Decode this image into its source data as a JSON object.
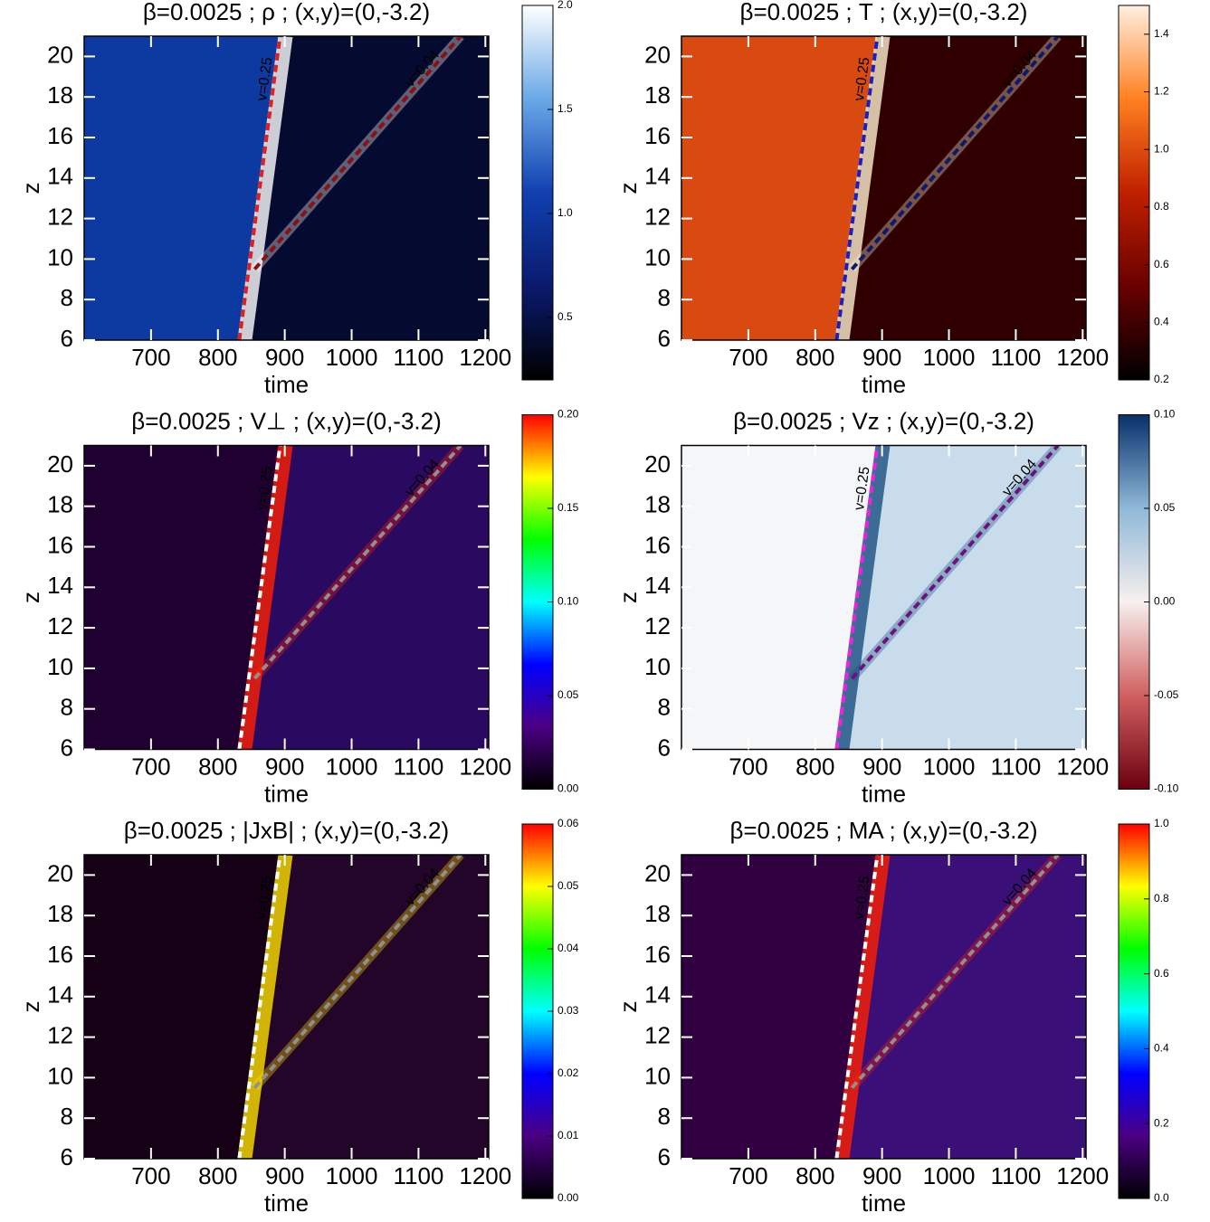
{
  "chart_data": [
    {
      "type": "heatmap",
      "title": "β=0.0025 ; ρ ; (x,y)=(0,-3.2)",
      "xlabel": "time",
      "ylabel": "z",
      "xlim": [
        600,
        1205
      ],
      "xticks": [
        700,
        800,
        900,
        1000,
        1100,
        1200
      ],
      "ylim": [
        6,
        21
      ],
      "yticks": [
        6,
        8,
        10,
        12,
        14,
        16,
        18,
        20
      ],
      "clim": [
        0.2,
        2.0
      ],
      "cticks": [
        {
          "value": 0.5,
          "label": "0.5"
        },
        {
          "value": 1.0,
          "label": "1.0"
        },
        {
          "value": 1.5,
          "label": "1.5"
        },
        {
          "value": 2.0,
          "label": "2.0"
        }
      ],
      "colormap": [
        "#000000",
        "#0a1a6e",
        "#1040b0",
        "#6aa8e8",
        "#ffffff"
      ],
      "field_colors": [
        "#0d3aa0",
        "#050a30",
        "#ffffff"
      ],
      "lines": [
        {
          "label": "v=0.25",
          "color": "#e02020",
          "x": [
            832,
            893
          ],
          "y": [
            6,
            21
          ]
        },
        {
          "label": "v=0.04",
          "color": "#8b1010",
          "x": [
            855,
            1163
          ],
          "y": [
            9.5,
            21
          ]
        }
      ]
    },
    {
      "type": "heatmap",
      "title": "β=0.0025 ; T ; (x,y)=(0,-3.2)",
      "xlabel": "time",
      "ylabel": "z",
      "xlim": [
        600,
        1205
      ],
      "xticks": [
        700,
        800,
        900,
        1000,
        1100,
        1200
      ],
      "ylim": [
        6,
        21
      ],
      "yticks": [
        6,
        8,
        10,
        12,
        14,
        16,
        18,
        20
      ],
      "clim": [
        0.2,
        1.5
      ],
      "cticks": [
        0.2,
        0.4,
        0.6,
        0.8,
        {
          "value": 1.0,
          "label": "1.0"
        },
        1.2,
        1.4
      ],
      "colormap": [
        "#000000",
        "#6a0000",
        "#c02000",
        "#ff8020",
        "#fff0e0"
      ],
      "field_colors": [
        "#d84a10",
        "#300000",
        "#fff0d0"
      ],
      "lines": [
        {
          "label": "v=0.25",
          "color": "#1a20c0",
          "x": [
            832,
            893
          ],
          "y": [
            6,
            21
          ]
        },
        {
          "label": "v=0.04",
          "color": "#0a1a6e",
          "x": [
            855,
            1163
          ],
          "y": [
            9.5,
            21
          ]
        }
      ]
    },
    {
      "type": "heatmap",
      "title": "β=0.0025 ; V⊥ ; (x,y)=(0,-3.2)",
      "xlabel": "time",
      "ylabel": "z",
      "xlim": [
        600,
        1205
      ],
      "xticks": [
        700,
        800,
        900,
        1000,
        1100,
        1200
      ],
      "ylim": [
        6,
        21
      ],
      "yticks": [
        6,
        8,
        10,
        12,
        14,
        16,
        18,
        20
      ],
      "clim": [
        0,
        0.2
      ],
      "cticks": [
        {
          "value": 0,
          "label": "0.00"
        },
        0.05,
        {
          "value": 0.1,
          "label": "0.10"
        },
        0.15,
        {
          "value": 0.2,
          "label": "0.20"
        }
      ],
      "colormap": [
        "#000000",
        "#4b0082",
        "#0000ff",
        "#00ffff",
        "#00ff00",
        "#ffff00",
        "#ff0000"
      ],
      "field_colors": [
        "#200030",
        "#2a0a60",
        "#ff2000"
      ],
      "lines": [
        {
          "label": "v=0.25",
          "color": "#ffffff",
          "x": [
            832,
            893
          ],
          "y": [
            6,
            21
          ]
        },
        {
          "label": "v=0.04",
          "color": "#909090",
          "x": [
            855,
            1163
          ],
          "y": [
            9.5,
            21
          ]
        }
      ]
    },
    {
      "type": "heatmap",
      "title": "β=0.0025 ; Vz ; (x,y)=(0,-3.2)",
      "xlabel": "time",
      "ylabel": "z",
      "xlim": [
        600,
        1205
      ],
      "xticks": [
        700,
        800,
        900,
        1000,
        1100,
        1200
      ],
      "ylim": [
        6,
        21
      ],
      "yticks": [
        6,
        8,
        10,
        12,
        14,
        16,
        18,
        20
      ],
      "clim": [
        -0.1,
        0.1
      ],
      "cticks": [
        {
          "value": -0.1,
          "label": "-0.10"
        },
        -0.05,
        {
          "value": 0,
          "label": "0.00"
        },
        0.05,
        {
          "value": 0.1,
          "label": "0.10"
        }
      ],
      "colormap": [
        "#6b0010",
        "#d06060",
        "#f7f0ee",
        "#8fb8d8",
        "#08306b"
      ],
      "field_colors": [
        "#f4f6f8",
        "#c8dcec",
        "#1a4f80"
      ],
      "lines": [
        {
          "label": "v=0.25",
          "color": "#f020e0",
          "x": [
            832,
            893
          ],
          "y": [
            6,
            21
          ]
        },
        {
          "label": "v=0.04",
          "color": "#701080",
          "x": [
            855,
            1163
          ],
          "y": [
            9.5,
            21
          ]
        }
      ]
    },
    {
      "type": "heatmap",
      "title": "β=0.0025 ; |JxB| ; (x,y)=(0,-3.2)",
      "xlabel": "time",
      "ylabel": "z",
      "xlim": [
        600,
        1205
      ],
      "xticks": [
        700,
        800,
        900,
        1000,
        1100,
        1200
      ],
      "ylim": [
        6,
        21
      ],
      "yticks": [
        6,
        8,
        10,
        12,
        14,
        16,
        18,
        20
      ],
      "clim": [
        0,
        0.06
      ],
      "cticks": [
        {
          "value": 0,
          "label": "0.00"
        },
        0.01,
        0.02,
        0.03,
        0.04,
        0.05,
        0.06
      ],
      "colormap": [
        "#000000",
        "#4b0082",
        "#0000ff",
        "#00ffff",
        "#00ff00",
        "#ffff00",
        "#ff0000"
      ],
      "field_colors": [
        "#150015",
        "#220528",
        "#ffe000"
      ],
      "lines": [
        {
          "label": "v=0.25",
          "color": "#ffffff",
          "x": [
            832,
            893
          ],
          "y": [
            6,
            21
          ]
        },
        {
          "label": "v=0.04",
          "color": "#909090",
          "x": [
            855,
            1163
          ],
          "y": [
            9.5,
            21
          ]
        }
      ]
    },
    {
      "type": "heatmap",
      "title": "β=0.0025 ; MA ; (x,y)=(0,-3.2)",
      "xlabel": "time",
      "ylabel": "z",
      "xlim": [
        600,
        1205
      ],
      "xticks": [
        700,
        800,
        900,
        1000,
        1100,
        1200
      ],
      "ylim": [
        6,
        21
      ],
      "yticks": [
        6,
        8,
        10,
        12,
        14,
        16,
        18,
        20
      ],
      "clim": [
        0,
        1.0
      ],
      "cticks": [
        {
          "value": 0,
          "label": "0.0"
        },
        0.2,
        0.4,
        0.6,
        0.8,
        {
          "value": 1.0,
          "label": "1.0"
        }
      ],
      "colormap": [
        "#000000",
        "#4b0082",
        "#0000ff",
        "#00ffff",
        "#00ff00",
        "#ffff00",
        "#ff0000"
      ],
      "field_colors": [
        "#300040",
        "#3a1078",
        "#ff2000"
      ],
      "lines": [
        {
          "label": "v=0.25",
          "color": "#ffffff",
          "x": [
            832,
            893
          ],
          "y": [
            6,
            21
          ]
        },
        {
          "label": "v=0.04",
          "color": "#909090",
          "x": [
            855,
            1163
          ],
          "y": [
            9.5,
            21
          ]
        }
      ]
    }
  ]
}
